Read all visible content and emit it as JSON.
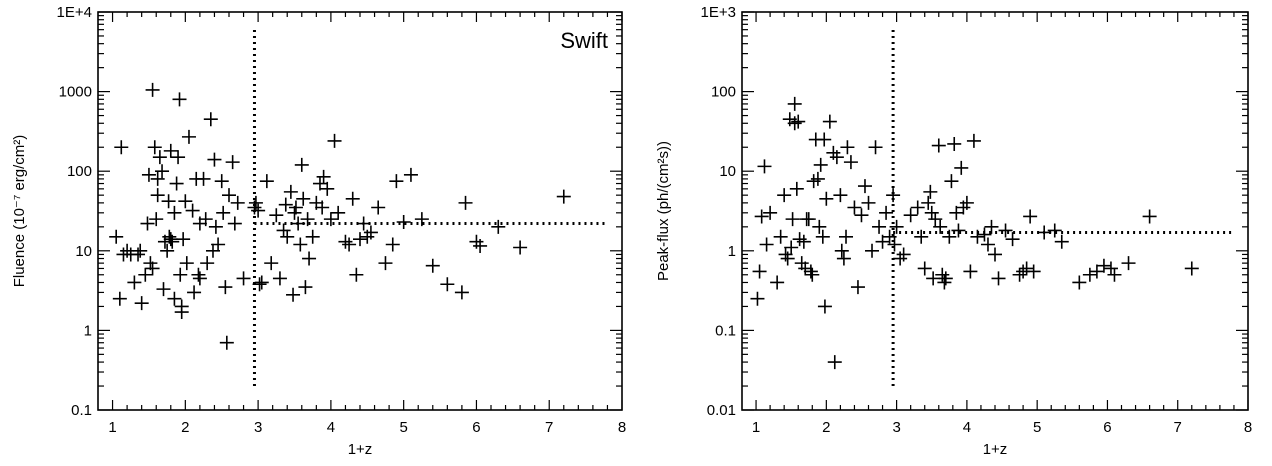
{
  "chart_data": [
    {
      "type": "scatter",
      "panel_label": "Swift",
      "xlabel": "1+z",
      "ylabel": "Fluence (10⁻⁷ erg/cm²)",
      "xlim": [
        0.8,
        8
      ],
      "ylim": [
        0.1,
        10000
      ],
      "yscale": "log",
      "x_ticks": [
        "1",
        "2",
        "3",
        "4",
        "5",
        "6",
        "7",
        "8"
      ],
      "y_ticks": [
        "0.1",
        "1",
        "10",
        "100",
        "1000",
        "1E+4"
      ],
      "y_tick_values": [
        0.1,
        1,
        10,
        100,
        1000,
        10000
      ],
      "ref_vertical": {
        "x": 2.95,
        "y_range": [
          0.2,
          6000
        ]
      },
      "ref_horizontal": {
        "y": 22,
        "x_range": [
          2.95,
          7.8
        ]
      },
      "marker": "plus",
      "points": [
        [
          1.05,
          15
        ],
        [
          1.1,
          2.5
        ],
        [
          1.12,
          200
        ],
        [
          1.15,
          9
        ],
        [
          1.2,
          10
        ],
        [
          1.25,
          9
        ],
        [
          1.3,
          4
        ],
        [
          1.35,
          9
        ],
        [
          1.38,
          10
        ],
        [
          1.4,
          2.2
        ],
        [
          1.45,
          5
        ],
        [
          1.48,
          22
        ],
        [
          1.5,
          90
        ],
        [
          1.52,
          7
        ],
        [
          1.55,
          1050
        ],
        [
          1.55,
          6
        ],
        [
          1.58,
          200
        ],
        [
          1.6,
          25
        ],
        [
          1.62,
          80
        ],
        [
          1.62,
          50
        ],
        [
          1.65,
          150
        ],
        [
          1.68,
          100
        ],
        [
          1.7,
          3.3
        ],
        [
          1.72,
          13
        ],
        [
          1.75,
          10
        ],
        [
          1.77,
          42
        ],
        [
          1.78,
          15
        ],
        [
          1.8,
          14
        ],
        [
          1.8,
          180
        ],
        [
          1.82,
          13
        ],
        [
          1.85,
          2.5
        ],
        [
          1.85,
          30
        ],
        [
          1.88,
          70
        ],
        [
          1.9,
          150
        ],
        [
          1.92,
          800
        ],
        [
          1.93,
          5
        ],
        [
          1.95,
          1.7
        ],
        [
          1.95,
          2
        ],
        [
          1.97,
          14
        ],
        [
          2.0,
          42
        ],
        [
          2.02,
          7
        ],
        [
          2.05,
          270
        ],
        [
          2.1,
          32
        ],
        [
          2.12,
          3
        ],
        [
          2.15,
          80
        ],
        [
          2.18,
          5
        ],
        [
          2.2,
          4.5
        ],
        [
          2.2,
          22
        ],
        [
          2.25,
          80
        ],
        [
          2.28,
          25
        ],
        [
          2.3,
          7
        ],
        [
          2.35,
          450
        ],
        [
          2.38,
          10
        ],
        [
          2.4,
          140
        ],
        [
          2.42,
          20
        ],
        [
          2.45,
          12
        ],
        [
          2.5,
          75
        ],
        [
          2.52,
          30
        ],
        [
          2.55,
          3.5
        ],
        [
          2.57,
          0.7
        ],
        [
          2.6,
          50
        ],
        [
          2.65,
          130
        ],
        [
          2.68,
          22
        ],
        [
          2.72,
          40
        ],
        [
          2.8,
          4.5
        ],
        [
          2.95,
          35
        ],
        [
          2.97,
          40
        ],
        [
          3.0,
          32
        ],
        [
          3.02,
          3.8
        ],
        [
          3.05,
          4
        ],
        [
          3.12,
          75
        ],
        [
          3.18,
          7
        ],
        [
          3.25,
          28
        ],
        [
          3.3,
          4.5
        ],
        [
          3.35,
          18
        ],
        [
          3.38,
          38
        ],
        [
          3.4,
          15
        ],
        [
          3.45,
          55
        ],
        [
          3.48,
          2.8
        ],
        [
          3.5,
          30
        ],
        [
          3.52,
          35
        ],
        [
          3.55,
          22
        ],
        [
          3.58,
          12
        ],
        [
          3.6,
          120
        ],
        [
          3.62,
          45
        ],
        [
          3.65,
          3.5
        ],
        [
          3.68,
          25
        ],
        [
          3.7,
          8
        ],
        [
          3.75,
          15
        ],
        [
          3.8,
          40
        ],
        [
          3.85,
          70
        ],
        [
          3.88,
          35
        ],
        [
          3.9,
          85
        ],
        [
          3.95,
          60
        ],
        [
          4.0,
          25
        ],
        [
          4.05,
          240
        ],
        [
          4.1,
          30
        ],
        [
          4.2,
          13
        ],
        [
          4.25,
          12
        ],
        [
          4.3,
          45
        ],
        [
          4.35,
          5
        ],
        [
          4.4,
          14
        ],
        [
          4.45,
          22
        ],
        [
          4.5,
          15
        ],
        [
          4.55,
          17
        ],
        [
          4.65,
          35
        ],
        [
          4.75,
          7
        ],
        [
          4.85,
          12
        ],
        [
          4.9,
          75
        ],
        [
          5.0,
          23
        ],
        [
          5.1,
          90
        ],
        [
          5.25,
          25
        ],
        [
          5.4,
          6.5
        ],
        [
          5.6,
          3.8
        ],
        [
          5.8,
          3
        ],
        [
          5.85,
          40
        ],
        [
          6.0,
          13
        ],
        [
          6.05,
          11.5
        ],
        [
          6.3,
          20
        ],
        [
          6.6,
          11
        ],
        [
          7.2,
          48
        ]
      ]
    },
    {
      "type": "scatter",
      "xlabel": "1+z",
      "ylabel": "Peak-flux (ph/(cm²s))",
      "xlim": [
        0.8,
        8
      ],
      "ylim": [
        0.01,
        1000
      ],
      "yscale": "log",
      "x_ticks": [
        "1",
        "2",
        "3",
        "4",
        "5",
        "6",
        "7",
        "8"
      ],
      "y_ticks": [
        "0.01",
        "0.1",
        "1",
        "10",
        "100",
        "1E+3"
      ],
      "y_tick_values": [
        0.01,
        0.1,
        1,
        10,
        100,
        1000
      ],
      "ref_vertical": {
        "x": 2.95,
        "y_range": [
          0.02,
          600
        ]
      },
      "ref_horizontal": {
        "y": 1.7,
        "x_range": [
          2.95,
          7.8
        ]
      },
      "marker": "plus",
      "points": [
        [
          1.02,
          0.25
        ],
        [
          1.05,
          0.55
        ],
        [
          1.08,
          2.7
        ],
        [
          1.12,
          11.5
        ],
        [
          1.15,
          1.2
        ],
        [
          1.2,
          3
        ],
        [
          1.3,
          0.4
        ],
        [
          1.35,
          1.5
        ],
        [
          1.4,
          5
        ],
        [
          1.42,
          0.9
        ],
        [
          1.45,
          0.8
        ],
        [
          1.48,
          45
        ],
        [
          1.5,
          1.1
        ],
        [
          1.52,
          2.5
        ],
        [
          1.55,
          70
        ],
        [
          1.55,
          40
        ],
        [
          1.58,
          6
        ],
        [
          1.6,
          42
        ],
        [
          1.62,
          1.4
        ],
        [
          1.65,
          0.7
        ],
        [
          1.68,
          1.3
        ],
        [
          1.7,
          0.6
        ],
        [
          1.72,
          2.5
        ],
        [
          1.75,
          2.5
        ],
        [
          1.78,
          0.55
        ],
        [
          1.8,
          0.5
        ],
        [
          1.82,
          7.5
        ],
        [
          1.85,
          25
        ],
        [
          1.88,
          8
        ],
        [
          1.9,
          2
        ],
        [
          1.92,
          12
        ],
        [
          1.95,
          1.5
        ],
        [
          1.97,
          25
        ],
        [
          1.98,
          0.2
        ],
        [
          2.0,
          4.5
        ],
        [
          2.05,
          42
        ],
        [
          2.1,
          17
        ],
        [
          2.12,
          0.04
        ],
        [
          2.15,
          15
        ],
        [
          2.2,
          5
        ],
        [
          2.22,
          1
        ],
        [
          2.25,
          0.8
        ],
        [
          2.28,
          1.5
        ],
        [
          2.3,
          20
        ],
        [
          2.35,
          13
        ],
        [
          2.4,
          3.5
        ],
        [
          2.45,
          0.35
        ],
        [
          2.5,
          2.8
        ],
        [
          2.55,
          6.5
        ],
        [
          2.6,
          4
        ],
        [
          2.65,
          1
        ],
        [
          2.7,
          20
        ],
        [
          2.75,
          2
        ],
        [
          2.8,
          1.3
        ],
        [
          2.85,
          3
        ],
        [
          2.9,
          1.5
        ],
        [
          2.95,
          5
        ],
        [
          2.97,
          1.2
        ],
        [
          3.0,
          2
        ],
        [
          3.05,
          0.8
        ],
        [
          3.1,
          0.9
        ],
        [
          3.2,
          2.8
        ],
        [
          3.3,
          3.5
        ],
        [
          3.35,
          1.5
        ],
        [
          3.4,
          0.6
        ],
        [
          3.45,
          4
        ],
        [
          3.48,
          5.5
        ],
        [
          3.5,
          3
        ],
        [
          3.52,
          0.45
        ],
        [
          3.55,
          2.5
        ],
        [
          3.6,
          21
        ],
        [
          3.62,
          2
        ],
        [
          3.65,
          0.5
        ],
        [
          3.68,
          0.4
        ],
        [
          3.7,
          0.45
        ],
        [
          3.75,
          1.5
        ],
        [
          3.78,
          7.5
        ],
        [
          3.82,
          22
        ],
        [
          3.85,
          3
        ],
        [
          3.88,
          1.8
        ],
        [
          3.92,
          11
        ],
        [
          3.95,
          3.5
        ],
        [
          4.0,
          4
        ],
        [
          4.05,
          0.55
        ],
        [
          4.1,
          24
        ],
        [
          4.15,
          1.5
        ],
        [
          4.25,
          1.6
        ],
        [
          4.3,
          1.2
        ],
        [
          4.35,
          2
        ],
        [
          4.4,
          0.9
        ],
        [
          4.45,
          0.45
        ],
        [
          4.55,
          1.8
        ],
        [
          4.65,
          1.4
        ],
        [
          4.75,
          0.5
        ],
        [
          4.8,
          0.55
        ],
        [
          4.85,
          0.6
        ],
        [
          4.9,
          2.7
        ],
        [
          4.95,
          0.55
        ],
        [
          5.1,
          1.7
        ],
        [
          5.25,
          1.8
        ],
        [
          5.35,
          1.3
        ],
        [
          5.6,
          0.4
        ],
        [
          5.75,
          0.5
        ],
        [
          5.85,
          0.55
        ],
        [
          5.95,
          0.65
        ],
        [
          6.05,
          0.6
        ],
        [
          6.1,
          0.5
        ],
        [
          6.3,
          0.7
        ],
        [
          6.6,
          2.7
        ],
        [
          7.2,
          0.6
        ]
      ]
    }
  ]
}
